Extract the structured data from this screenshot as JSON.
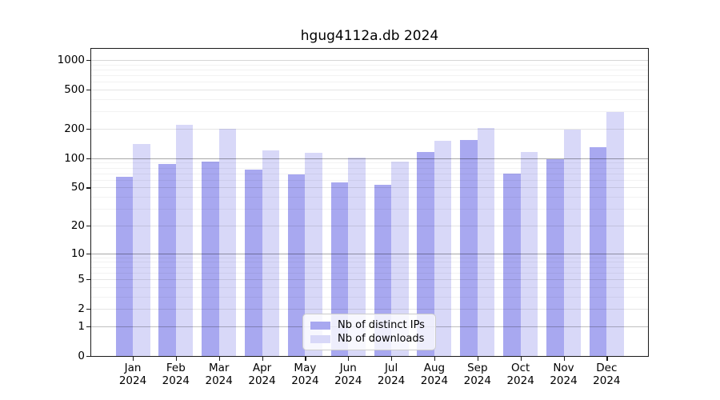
{
  "title": "hgug4112a.db 2024",
  "chart_data": {
    "type": "bar",
    "title": "hgug4112a.db 2024",
    "categories": [
      "Jan",
      "Feb",
      "Mar",
      "Apr",
      "May",
      "Jun",
      "Jul",
      "Aug",
      "Sep",
      "Oct",
      "Nov",
      "Dec"
    ],
    "category_year": "2024",
    "series": [
      {
        "name": "Nb of distinct IPs",
        "color": "#a8a8f0",
        "values": [
          65,
          88,
          93,
          77,
          68,
          57,
          53,
          115,
          153,
          69,
          97,
          131
        ]
      },
      {
        "name": "Nb of downloads",
        "color": "#d8d8f8",
        "values": [
          141,
          220,
          201,
          120,
          114,
          102,
          92,
          152,
          205,
          115,
          197,
          295
        ]
      }
    ],
    "yscale": "log1p",
    "yticks": [
      0,
      1,
      2,
      5,
      10,
      20,
      50,
      100,
      200,
      500,
      1000
    ],
    "ylim": [
      0,
      1330
    ],
    "grid": "on",
    "legend_position": "inside-bottom-center",
    "xlabel": "",
    "ylabel": ""
  },
  "legend": {
    "items": [
      {
        "label": "Nb of distinct IPs",
        "color": "#a8a8f0"
      },
      {
        "label": "Nb of downloads",
        "color": "#d8d8f8"
      }
    ]
  }
}
